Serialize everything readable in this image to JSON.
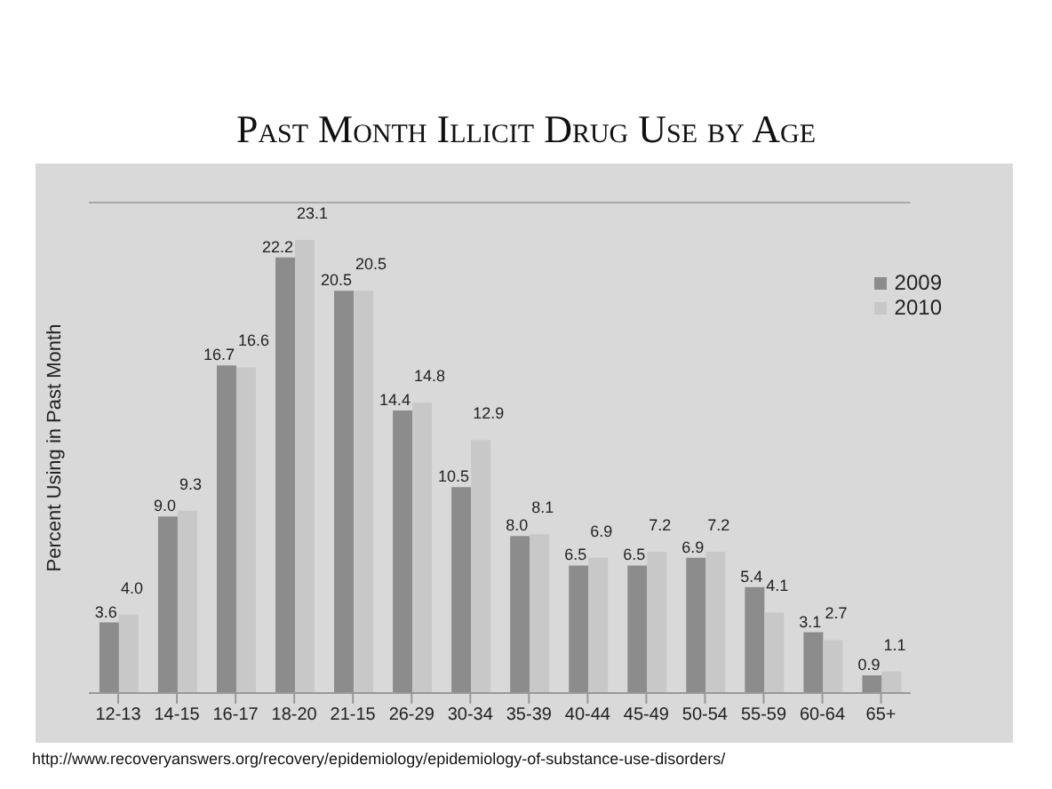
{
  "chart_data": {
    "type": "bar",
    "title": "Past Month Illicit Drug Use by Age",
    "ylabel": "Percent Using in Past Month",
    "categories": [
      "12-13",
      "14-15",
      "16-17",
      "18-20",
      "21-15",
      "26-29",
      "30-34",
      "35-39",
      "40-44",
      "45-49",
      "50-54",
      "55-59",
      "60-64",
      "65+"
    ],
    "series": [
      {
        "name": "2009",
        "color": "#8c8c8c",
        "values": [
          3.6,
          9.0,
          16.7,
          22.2,
          20.5,
          14.4,
          10.5,
          8.0,
          6.5,
          6.5,
          6.9,
          5.4,
          3.1,
          0.9
        ],
        "value_labels": [
          "3.6",
          "9.0",
          "16.7",
          "22.2",
          "20.5",
          "14.4",
          "10.5",
          "8.0",
          "6.5",
          "6.5",
          "6.9",
          "5.4",
          "3.1",
          "0.9"
        ]
      },
      {
        "name": "2010",
        "color": "#c8c8c8",
        "values": [
          4.0,
          9.3,
          16.6,
          23.1,
          20.5,
          14.8,
          12.9,
          8.1,
          6.9,
          7.2,
          7.2,
          4.1,
          2.7,
          1.1
        ],
        "value_labels": [
          "4.0",
          "9.3",
          "16.6",
          "23.1",
          "20.5",
          "14.8",
          "12.9",
          "8.1",
          "6.9",
          "7.2",
          "7.2",
          "4.1",
          "2.7",
          "1.1"
        ]
      }
    ],
    "ylim": [
      0,
      25
    ],
    "tick_labels": "x",
    "grid": "y",
    "legend": "right",
    "annotations": [
      "http://www.recoveryanswers.org/recovery/epidemiology/epidemiology-of-substance-use-disorders/"
    ]
  }
}
